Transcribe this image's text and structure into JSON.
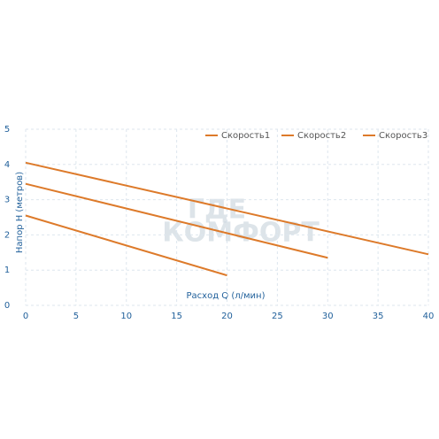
{
  "chart_data": {
    "type": "line",
    "xlabel": "Расход Q (л/мин)",
    "ylabel": "Напор Н (метров)",
    "watermark": [
      "ГДЕ",
      "КОМФОРТ"
    ],
    "xlim": [
      0,
      40
    ],
    "xticks": [
      0,
      5,
      10,
      15,
      20,
      25,
      30,
      35,
      40
    ],
    "ylim": [
      0,
      5
    ],
    "yticks": [
      0,
      1,
      2,
      3,
      4,
      5
    ],
    "grid": true,
    "legend": "top-right",
    "series": [
      {
        "name": "Скорость1",
        "color": "#dd7a2a",
        "x": [
          0,
          40
        ],
        "values": [
          4.05,
          1.45
        ]
      },
      {
        "name": "Скорость2",
        "color": "#dd7a2a",
        "x": [
          0,
          30
        ],
        "values": [
          3.45,
          1.35
        ]
      },
      {
        "name": "Скорость3",
        "color": "#dd7a2a",
        "x": [
          0,
          20
        ],
        "values": [
          2.55,
          0.85
        ]
      }
    ]
  }
}
